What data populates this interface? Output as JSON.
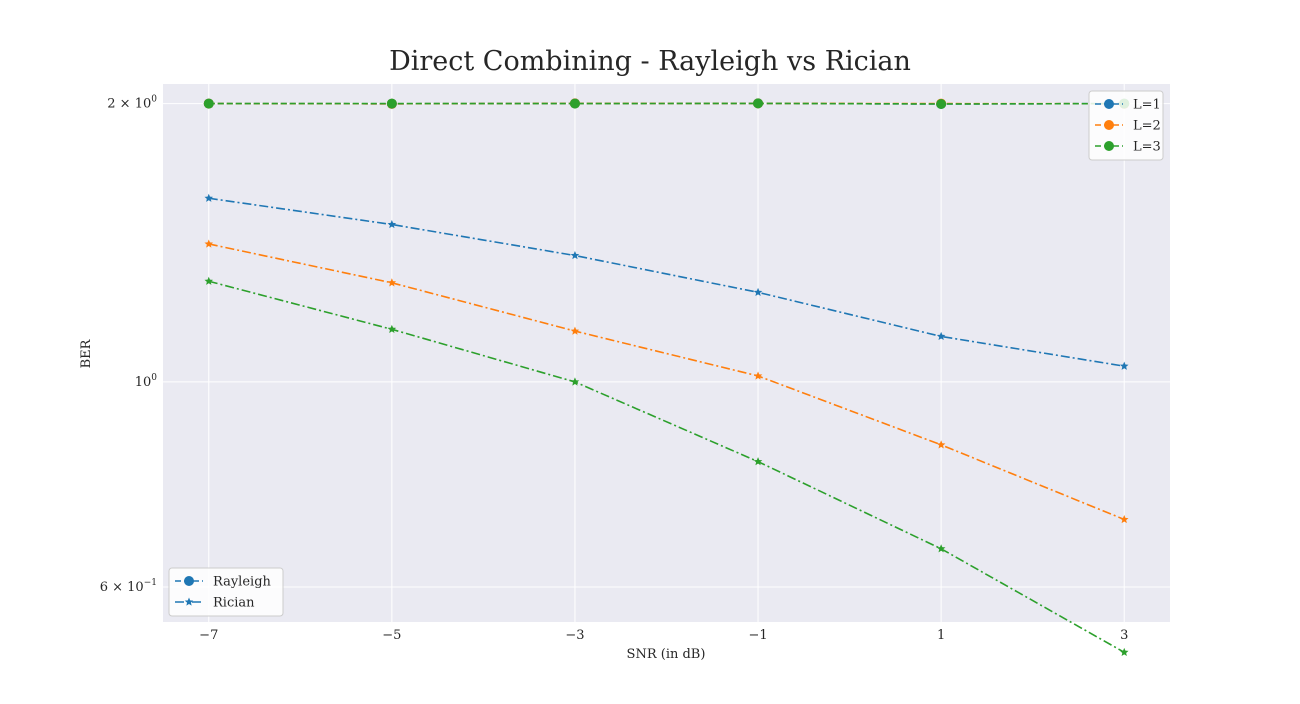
{
  "chart_data": {
    "type": "line",
    "title": "Direct Combining - Rayleigh vs Rician",
    "xlabel": "SNR (in dB)",
    "ylabel": "BER",
    "yscale": "log",
    "xlim": [
      -7.5,
      3.5
    ],
    "ylim": [
      0.55,
      2.1
    ],
    "grid": true,
    "x": [
      -7,
      -5,
      -3,
      -1,
      1,
      3
    ],
    "x_ticks": [
      {
        "value": -7,
        "label": "−7"
      },
      {
        "value": -5,
        "label": "−5"
      },
      {
        "value": -3,
        "label": "−3"
      },
      {
        "value": -1,
        "label": "−1"
      },
      {
        "value": 1,
        "label": "1"
      },
      {
        "value": 3,
        "label": "3"
      }
    ],
    "y_ticks": [
      {
        "value": 2,
        "base": "2 × 10",
        "exp": "0"
      },
      {
        "value": 1,
        "base": "10",
        "exp": "0"
      },
      {
        "value": 0.6,
        "base": "6 × 10",
        "exp": "−1"
      }
    ],
    "series": [
      {
        "name": "Rayleigh L=1",
        "channel": "Rayleigh",
        "color": "#1f77b4",
        "marker": "circle",
        "linestyle": "dashed",
        "values": [
          2.0,
          1.999,
          2.001,
          2.001,
          1.998,
          2.0
        ]
      },
      {
        "name": "Rayleigh L=2",
        "channel": "Rayleigh",
        "color": "#ff7f0e",
        "marker": "circle",
        "linestyle": "dashed",
        "values": [
          2.0,
          1.999,
          2.001,
          2.001,
          2.0,
          1.999
        ]
      },
      {
        "name": "Rayleigh L=3",
        "channel": "Rayleigh",
        "color": "#2ca02c",
        "marker": "circle",
        "linestyle": "dashed",
        "values": [
          2.0,
          2.0,
          2.0,
          2.001,
          1.998,
          2.0
        ]
      },
      {
        "name": "Rician L=1",
        "channel": "Rician",
        "color": "#1f77b4",
        "marker": "star",
        "linestyle": "dashdot",
        "values": [
          1.58,
          1.48,
          1.37,
          1.25,
          1.12,
          1.04
        ]
      },
      {
        "name": "Rician L=2",
        "channel": "Rician",
        "color": "#ff7f0e",
        "marker": "star",
        "linestyle": "dashdot",
        "values": [
          1.41,
          1.28,
          1.135,
          1.015,
          0.855,
          0.71
        ]
      },
      {
        "name": "Rician L=3",
        "channel": "Rician",
        "color": "#2ca02c",
        "marker": "star",
        "linestyle": "dashdot",
        "values": [
          1.285,
          1.14,
          1.0,
          0.82,
          0.66,
          0.51
        ]
      }
    ],
    "legends": [
      {
        "placement": "upper-right",
        "entries": [
          {
            "label": "L=1",
            "color": "#1f77b4",
            "marker": "circle",
            "linestyle": "dashed"
          },
          {
            "label": "L=2",
            "color": "#ff7f0e",
            "marker": "circle",
            "linestyle": "dashed"
          },
          {
            "label": "L=3",
            "color": "#2ca02c",
            "marker": "circle",
            "linestyle": "dashed"
          }
        ]
      },
      {
        "placement": "lower-left",
        "entries": [
          {
            "label": "Rayleigh",
            "color": "#1f77b4",
            "marker": "circle",
            "linestyle": "dashed"
          },
          {
            "label": "Rician",
            "color": "#1f77b4",
            "marker": "star",
            "linestyle": "dashdot"
          }
        ]
      }
    ],
    "colors": {
      "plot_background": "#eaeaf2",
      "grid": "#ffffff"
    }
  }
}
